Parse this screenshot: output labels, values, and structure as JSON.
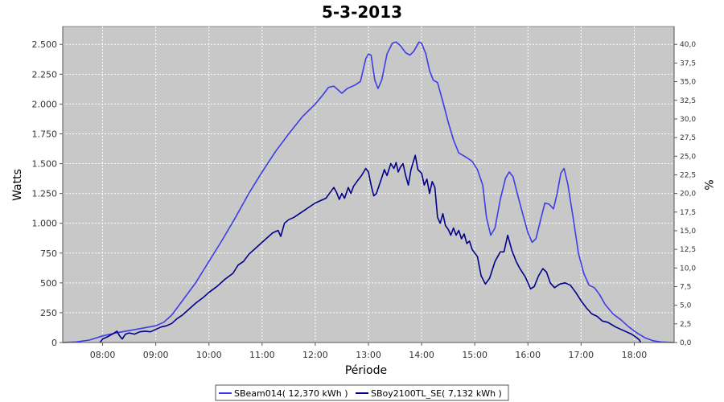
{
  "chart_data": {
    "type": "line",
    "title": "5-3-2013",
    "xlabel": "Période",
    "ylabel": "Watts",
    "y2label": "%",
    "xlim": [
      7.25,
      18.75
    ],
    "ylim": [
      0,
      2650
    ],
    "y2lim": [
      0,
      42.4
    ],
    "x_ticks": [
      8,
      9,
      10,
      11,
      12,
      13,
      14,
      15,
      16,
      17,
      18
    ],
    "x_tick_labels": [
      "08:00",
      "09:00",
      "10:00",
      "11:00",
      "12:00",
      "13:00",
      "14:00",
      "15:00",
      "16:00",
      "17:00",
      "18:00"
    ],
    "y_ticks": [
      0,
      250,
      500,
      750,
      1000,
      1250,
      1500,
      1750,
      2000,
      2250,
      2500
    ],
    "y_tick_labels": [
      "0",
      "250",
      "500",
      "750",
      "1.000",
      "1.250",
      "1.500",
      "1.750",
      "2.000",
      "2.250",
      "2.500"
    ],
    "y2_ticks": [
      0,
      2.5,
      5,
      7.5,
      10,
      12.5,
      15,
      17.5,
      20,
      22.5,
      25,
      27.5,
      30,
      32.5,
      35,
      37.5,
      40
    ],
    "y2_tick_labels": [
      "0,0",
      "2,5",
      "5,0",
      "7,5",
      "10,0",
      "12,5",
      "15,0",
      "17,5",
      "20,0",
      "22,5",
      "25,0",
      "27,5",
      "30,0",
      "32,5",
      "35,0",
      "37,5",
      "40,0"
    ],
    "grid": true,
    "legend_position": "bottom",
    "background_color": "#c8c8c8",
    "series": [
      {
        "name": "SBeam014( 12,370 kWh )",
        "color": "#3c3ce8",
        "points": [
          [
            7.25,
            0
          ],
          [
            7.5,
            5
          ],
          [
            7.75,
            20
          ],
          [
            8.0,
            55
          ],
          [
            8.25,
            80
          ],
          [
            8.5,
            100
          ],
          [
            8.75,
            120
          ],
          [
            9.0,
            140
          ],
          [
            9.15,
            170
          ],
          [
            9.3,
            230
          ],
          [
            9.5,
            350
          ],
          [
            9.75,
            500
          ],
          [
            10.0,
            680
          ],
          [
            10.25,
            860
          ],
          [
            10.5,
            1050
          ],
          [
            10.75,
            1250
          ],
          [
            11.0,
            1430
          ],
          [
            11.25,
            1600
          ],
          [
            11.5,
            1750
          ],
          [
            11.75,
            1890
          ],
          [
            12.0,
            2000
          ],
          [
            12.15,
            2080
          ],
          [
            12.25,
            2140
          ],
          [
            12.35,
            2150
          ],
          [
            12.5,
            2090
          ],
          [
            12.6,
            2130
          ],
          [
            12.75,
            2160
          ],
          [
            12.85,
            2190
          ],
          [
            12.95,
            2380
          ],
          [
            13.0,
            2420
          ],
          [
            13.05,
            2410
          ],
          [
            13.12,
            2200
          ],
          [
            13.18,
            2130
          ],
          [
            13.25,
            2200
          ],
          [
            13.35,
            2420
          ],
          [
            13.45,
            2510
          ],
          [
            13.52,
            2520
          ],
          [
            13.6,
            2490
          ],
          [
            13.7,
            2430
          ],
          [
            13.78,
            2410
          ],
          [
            13.85,
            2440
          ],
          [
            13.95,
            2520
          ],
          [
            14.0,
            2510
          ],
          [
            14.08,
            2420
          ],
          [
            14.15,
            2280
          ],
          [
            14.22,
            2200
          ],
          [
            14.3,
            2180
          ],
          [
            14.4,
            2020
          ],
          [
            14.5,
            1850
          ],
          [
            14.6,
            1700
          ],
          [
            14.7,
            1590
          ],
          [
            14.85,
            1550
          ],
          [
            14.95,
            1520
          ],
          [
            15.05,
            1450
          ],
          [
            15.15,
            1320
          ],
          [
            15.22,
            1050
          ],
          [
            15.3,
            900
          ],
          [
            15.38,
            960
          ],
          [
            15.48,
            1200
          ],
          [
            15.58,
            1380
          ],
          [
            15.65,
            1430
          ],
          [
            15.72,
            1390
          ],
          [
            15.8,
            1250
          ],
          [
            15.9,
            1080
          ],
          [
            16.0,
            920
          ],
          [
            16.08,
            840
          ],
          [
            16.15,
            870
          ],
          [
            16.25,
            1050
          ],
          [
            16.32,
            1170
          ],
          [
            16.4,
            1160
          ],
          [
            16.48,
            1120
          ],
          [
            16.55,
            1250
          ],
          [
            16.62,
            1420
          ],
          [
            16.68,
            1460
          ],
          [
            16.75,
            1330
          ],
          [
            16.85,
            1050
          ],
          [
            16.95,
            750
          ],
          [
            17.05,
            580
          ],
          [
            17.15,
            480
          ],
          [
            17.25,
            460
          ],
          [
            17.35,
            400
          ],
          [
            17.45,
            320
          ],
          [
            17.6,
            240
          ],
          [
            17.75,
            190
          ],
          [
            17.9,
            130
          ],
          [
            18.05,
            80
          ],
          [
            18.2,
            40
          ],
          [
            18.35,
            15
          ],
          [
            18.5,
            5
          ],
          [
            18.75,
            0
          ]
        ]
      },
      {
        "name": "SBoy2100TL_SE( 7,132 kWh )",
        "color": "#00008b",
        "points": [
          [
            7.95,
            0
          ],
          [
            8.0,
            30
          ],
          [
            8.1,
            50
          ],
          [
            8.2,
            75
          ],
          [
            8.27,
            95
          ],
          [
            8.32,
            55
          ],
          [
            8.37,
            30
          ],
          [
            8.43,
            70
          ],
          [
            8.5,
            80
          ],
          [
            8.6,
            70
          ],
          [
            8.7,
            90
          ],
          [
            8.8,
            95
          ],
          [
            8.9,
            90
          ],
          [
            9.0,
            110
          ],
          [
            9.1,
            130
          ],
          [
            9.2,
            140
          ],
          [
            9.3,
            160
          ],
          [
            9.4,
            200
          ],
          [
            9.5,
            230
          ],
          [
            9.6,
            270
          ],
          [
            9.75,
            330
          ],
          [
            9.9,
            380
          ],
          [
            10.0,
            420
          ],
          [
            10.15,
            470
          ],
          [
            10.3,
            530
          ],
          [
            10.45,
            580
          ],
          [
            10.55,
            650
          ],
          [
            10.65,
            680
          ],
          [
            10.75,
            740
          ],
          [
            10.9,
            800
          ],
          [
            11.0,
            840
          ],
          [
            11.1,
            880
          ],
          [
            11.2,
            920
          ],
          [
            11.3,
            940
          ],
          [
            11.35,
            890
          ],
          [
            11.42,
            1000
          ],
          [
            11.5,
            1030
          ],
          [
            11.6,
            1050
          ],
          [
            11.7,
            1080
          ],
          [
            11.8,
            1110
          ],
          [
            11.9,
            1140
          ],
          [
            12.0,
            1170
          ],
          [
            12.1,
            1190
          ],
          [
            12.2,
            1210
          ],
          [
            12.3,
            1270
          ],
          [
            12.35,
            1300
          ],
          [
            12.4,
            1260
          ],
          [
            12.45,
            1200
          ],
          [
            12.5,
            1250
          ],
          [
            12.55,
            1210
          ],
          [
            12.62,
            1300
          ],
          [
            12.67,
            1250
          ],
          [
            12.72,
            1310
          ],
          [
            12.8,
            1360
          ],
          [
            12.87,
            1400
          ],
          [
            12.95,
            1460
          ],
          [
            13.0,
            1430
          ],
          [
            13.05,
            1320
          ],
          [
            13.1,
            1230
          ],
          [
            13.15,
            1250
          ],
          [
            13.25,
            1380
          ],
          [
            13.3,
            1450
          ],
          [
            13.35,
            1400
          ],
          [
            13.42,
            1500
          ],
          [
            13.48,
            1460
          ],
          [
            13.52,
            1510
          ],
          [
            13.56,
            1430
          ],
          [
            13.6,
            1470
          ],
          [
            13.65,
            1500
          ],
          [
            13.7,
            1400
          ],
          [
            13.75,
            1320
          ],
          [
            13.8,
            1450
          ],
          [
            13.88,
            1570
          ],
          [
            13.93,
            1450
          ],
          [
            14.0,
            1420
          ],
          [
            14.05,
            1320
          ],
          [
            14.1,
            1370
          ],
          [
            14.15,
            1250
          ],
          [
            14.2,
            1350
          ],
          [
            14.25,
            1300
          ],
          [
            14.3,
            1050
          ],
          [
            14.35,
            1000
          ],
          [
            14.4,
            1080
          ],
          [
            14.45,
            980
          ],
          [
            14.5,
            950
          ],
          [
            14.55,
            900
          ],
          [
            14.6,
            960
          ],
          [
            14.65,
            900
          ],
          [
            14.7,
            940
          ],
          [
            14.75,
            870
          ],
          [
            14.8,
            910
          ],
          [
            14.85,
            830
          ],
          [
            14.9,
            850
          ],
          [
            14.95,
            780
          ],
          [
            15.05,
            720
          ],
          [
            15.12,
            560
          ],
          [
            15.2,
            490
          ],
          [
            15.28,
            540
          ],
          [
            15.38,
            680
          ],
          [
            15.48,
            760
          ],
          [
            15.55,
            760
          ],
          [
            15.62,
            900
          ],
          [
            15.7,
            770
          ],
          [
            15.78,
            680
          ],
          [
            15.85,
            620
          ],
          [
            15.95,
            550
          ],
          [
            16.05,
            450
          ],
          [
            16.12,
            470
          ],
          [
            16.2,
            560
          ],
          [
            16.28,
            620
          ],
          [
            16.35,
            590
          ],
          [
            16.42,
            500
          ],
          [
            16.5,
            460
          ],
          [
            16.6,
            490
          ],
          [
            16.7,
            500
          ],
          [
            16.8,
            480
          ],
          [
            16.9,
            420
          ],
          [
            17.0,
            350
          ],
          [
            17.1,
            290
          ],
          [
            17.2,
            240
          ],
          [
            17.3,
            220
          ],
          [
            17.4,
            180
          ],
          [
            17.5,
            170
          ],
          [
            17.65,
            130
          ],
          [
            17.8,
            100
          ],
          [
            17.95,
            70
          ],
          [
            18.05,
            40
          ],
          [
            18.1,
            20
          ],
          [
            18.12,
            0
          ]
        ]
      }
    ]
  }
}
